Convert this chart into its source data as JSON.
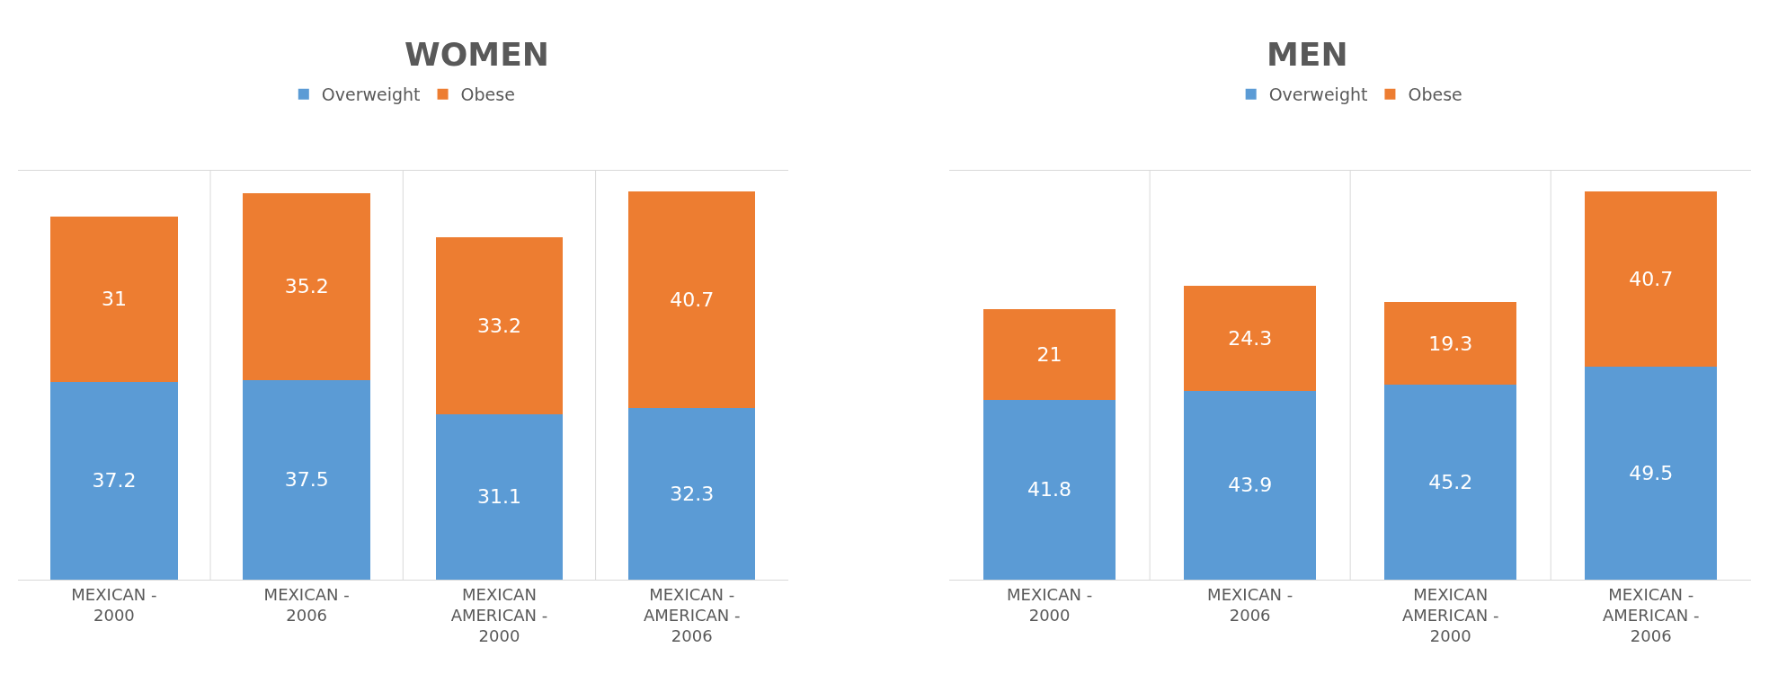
{
  "chart_data": [
    {
      "type": "bar",
      "title": "WOMEN",
      "stacked": true,
      "data_labels": true,
      "legend": "top",
      "grid": "x",
      "tick_labels": "x",
      "categories": [
        "MEXICAN - 2000",
        "MEXICAN - 2006",
        "MEXICAN AMERICAN - 2000",
        "MEXICAN - AMERICAN - 2006"
      ],
      "series": [
        {
          "name": "Overweight",
          "color": "#5b9bd5",
          "values": [
            37.2,
            37.5,
            31.1,
            32.3
          ]
        },
        {
          "name": "Obese",
          "color": "#ed7d31",
          "values": [
            31,
            35.2,
            33.2,
            40.7
          ]
        }
      ]
    },
    {
      "type": "bar",
      "title": "MEN",
      "stacked": true,
      "data_labels": true,
      "legend": "top",
      "grid": "x",
      "tick_labels": "x",
      "categories": [
        "MEXICAN - 2000",
        "MEXICAN - 2006",
        "MEXICAN AMERICAN - 2000",
        "MEXICAN - AMERICAN - 2006"
      ],
      "series": [
        {
          "name": "Overweight",
          "color": "#5b9bd5",
          "values": [
            41.8,
            43.9,
            45.2,
            49.5
          ]
        },
        {
          "name": "Obese",
          "color": "#ed7d31",
          "values": [
            21,
            24.3,
            19.3,
            40.7
          ]
        }
      ]
    }
  ]
}
